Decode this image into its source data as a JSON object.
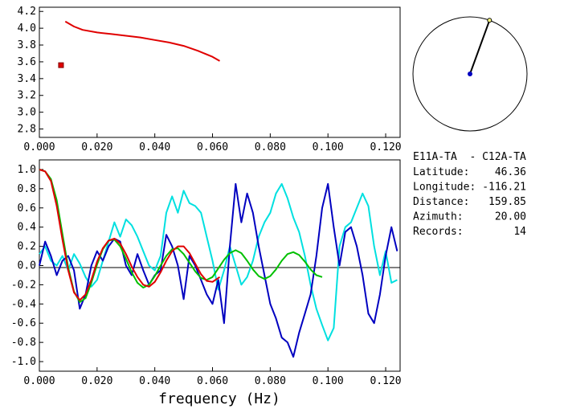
{
  "chart_data": [
    {
      "type": "line",
      "title": "",
      "xlabel": "",
      "ylabel": "",
      "xlim": [
        0,
        0.125
      ],
      "ylim": [
        2.7,
        4.25
      ],
      "xticks": [
        "0.000",
        "0.020",
        "0.040",
        "0.060",
        "0.080",
        "0.100",
        "0.120"
      ],
      "xtick_values": [
        0,
        0.02,
        0.04,
        0.06,
        0.08,
        0.1,
        0.12
      ],
      "yticks": [
        "4.2",
        "4.0",
        "3.8",
        "3.6",
        "3.4",
        "3.2",
        "3.0",
        "2.8"
      ],
      "ytick_values": [
        4.2,
        4.0,
        3.8,
        3.6,
        3.4,
        3.2,
        3.0,
        2.8
      ],
      "grid": false,
      "series": [
        {
          "color": "#e00000",
          "x": [
            0.009,
            0.012,
            0.015,
            0.02,
            0.025,
            0.03,
            0.035,
            0.04,
            0.045,
            0.05,
            0.055,
            0.06,
            0.0625
          ],
          "y": [
            4.08,
            4.02,
            3.98,
            3.95,
            3.93,
            3.91,
            3.89,
            3.86,
            3.83,
            3.79,
            3.73,
            3.66,
            3.61
          ]
        }
      ],
      "markers": [
        {
          "x": 0.0075,
          "y": 3.56,
          "shape": "square",
          "color": "#e00000"
        }
      ]
    },
    {
      "type": "line",
      "title": "",
      "xlabel": "frequency (Hz)",
      "ylabel": "",
      "xlim": [
        0,
        0.125
      ],
      "ylim": [
        -1.1,
        1.1
      ],
      "xticks": [
        "0.000",
        "0.020",
        "0.040",
        "0.060",
        "0.080",
        "0.100",
        "0.120"
      ],
      "xtick_values": [
        0,
        0.02,
        0.04,
        0.06,
        0.08,
        0.1,
        0.12
      ],
      "yticks": [
        "1.0",
        "0.8",
        "0.6",
        "0.4",
        "0.2",
        "0.0",
        "-0.2",
        "-0.4",
        "-0.6",
        "-0.8",
        "-1.0"
      ],
      "ytick_values": [
        1.0,
        0.8,
        0.6,
        0.4,
        0.2,
        0.0,
        -0.2,
        -0.4,
        -0.6,
        -0.8,
        -1.0
      ],
      "grid": false,
      "zero_line": true,
      "series": [
        {
          "color": "#00e0e0",
          "x": [
            0,
            0.002,
            0.004,
            0.006,
            0.008,
            0.01,
            0.012,
            0.014,
            0.016,
            0.018,
            0.02,
            0.022,
            0.024,
            0.026,
            0.028,
            0.03,
            0.032,
            0.034,
            0.036,
            0.038,
            0.04,
            0.042,
            0.044,
            0.046,
            0.048,
            0.05,
            0.052,
            0.054,
            0.056,
            0.058,
            0.06,
            0.062,
            0.064,
            0.066,
            0.068,
            0.07,
            0.072,
            0.074,
            0.076,
            0.078,
            0.08,
            0.082,
            0.084,
            0.086,
            0.088,
            0.09,
            0.092,
            0.094,
            0.096,
            0.098,
            0.1,
            0.102,
            0.104,
            0.106,
            0.108,
            0.11,
            0.112,
            0.114,
            0.116,
            0.118,
            0.12,
            0.122,
            0.124
          ],
          "y": [
            0.12,
            0.2,
            0.05,
            0.0,
            0.1,
            -0.05,
            0.12,
            0.02,
            -0.12,
            -0.22,
            -0.15,
            0.05,
            0.25,
            0.45,
            0.3,
            0.48,
            0.42,
            0.3,
            0.15,
            0.0,
            -0.05,
            0.1,
            0.55,
            0.72,
            0.55,
            0.78,
            0.65,
            0.62,
            0.55,
            0.3,
            0.05,
            -0.25,
            -0.05,
            0.2,
            0.0,
            -0.2,
            -0.12,
            0.05,
            0.3,
            0.45,
            0.55,
            0.75,
            0.85,
            0.7,
            0.5,
            0.35,
            0.1,
            -0.2,
            -0.45,
            -0.62,
            -0.78,
            -0.65,
            0.2,
            0.4,
            0.45,
            0.6,
            0.75,
            0.62,
            0.2,
            -0.1,
            0.15,
            -0.18,
            -0.15
          ]
        },
        {
          "color": "#0000c0",
          "x": [
            0,
            0.002,
            0.004,
            0.006,
            0.008,
            0.01,
            0.012,
            0.014,
            0.016,
            0.018,
            0.02,
            0.022,
            0.024,
            0.026,
            0.028,
            0.03,
            0.032,
            0.034,
            0.036,
            0.038,
            0.04,
            0.042,
            0.044,
            0.046,
            0.048,
            0.05,
            0.052,
            0.054,
            0.056,
            0.058,
            0.06,
            0.062,
            0.064,
            0.066,
            0.068,
            0.07,
            0.072,
            0.074,
            0.076,
            0.078,
            0.08,
            0.082,
            0.084,
            0.086,
            0.088,
            0.09,
            0.092,
            0.094,
            0.096,
            0.098,
            0.1,
            0.102,
            0.104,
            0.106,
            0.108,
            0.11,
            0.112,
            0.114,
            0.116,
            0.118,
            0.12,
            0.122,
            0.124
          ],
          "y": [
            0.0,
            0.25,
            0.1,
            -0.1,
            0.05,
            0.1,
            -0.05,
            -0.45,
            -0.3,
            0.0,
            0.15,
            0.05,
            0.2,
            0.28,
            0.25,
            0.0,
            -0.1,
            0.12,
            -0.05,
            -0.2,
            -0.1,
            -0.05,
            0.32,
            0.2,
            0.0,
            -0.35,
            0.1,
            0.0,
            -0.15,
            -0.3,
            -0.4,
            -0.15,
            -0.6,
            0.2,
            0.85,
            0.45,
            0.75,
            0.55,
            0.2,
            -0.1,
            -0.4,
            -0.55,
            -0.75,
            -0.8,
            -0.95,
            -0.7,
            -0.5,
            -0.3,
            0.1,
            0.6,
            0.85,
            0.4,
            0.0,
            0.35,
            0.4,
            0.2,
            -0.1,
            -0.5,
            -0.6,
            -0.3,
            0.1,
            0.4,
            0.15
          ]
        },
        {
          "color": "#00c000",
          "x": [
            0.0,
            0.002,
            0.004,
            0.006,
            0.008,
            0.01,
            0.012,
            0.014,
            0.016,
            0.018,
            0.02,
            0.022,
            0.024,
            0.026,
            0.028,
            0.03,
            0.032,
            0.034,
            0.036,
            0.038,
            0.04,
            0.042,
            0.044,
            0.046,
            0.048,
            0.05,
            0.052,
            0.054,
            0.056,
            0.058,
            0.06,
            0.062,
            0.064,
            0.066,
            0.068,
            0.07,
            0.072,
            0.074,
            0.076,
            0.078,
            0.08,
            0.082,
            0.084,
            0.086,
            0.088,
            0.09,
            0.092,
            0.094,
            0.096,
            0.098
          ],
          "y": [
            1.0,
            0.98,
            0.9,
            0.68,
            0.33,
            -0.02,
            -0.27,
            -0.38,
            -0.34,
            -0.18,
            0.01,
            0.17,
            0.26,
            0.27,
            0.2,
            0.07,
            -0.07,
            -0.18,
            -0.23,
            -0.2,
            -0.11,
            0.0,
            0.1,
            0.17,
            0.18,
            0.12,
            0.03,
            -0.06,
            -0.13,
            -0.15,
            -0.12,
            -0.03,
            0.06,
            0.13,
            0.16,
            0.13,
            0.05,
            -0.04,
            -0.11,
            -0.14,
            -0.11,
            -0.04,
            0.05,
            0.12,
            0.14,
            0.11,
            0.04,
            -0.04,
            -0.1,
            -0.12
          ]
        },
        {
          "color": "#e00000",
          "x": [
            0.0,
            0.002,
            0.004,
            0.006,
            0.008,
            0.01,
            0.012,
            0.014,
            0.016,
            0.018,
            0.02,
            0.022,
            0.024,
            0.026,
            0.028,
            0.03,
            0.032,
            0.034,
            0.036,
            0.038,
            0.04,
            0.042,
            0.044,
            0.046,
            0.048,
            0.05,
            0.052,
            0.054,
            0.056,
            0.058,
            0.06,
            0.0625
          ],
          "y": [
            1.0,
            0.98,
            0.88,
            0.62,
            0.27,
            -0.05,
            -0.28,
            -0.36,
            -0.3,
            -0.15,
            0.04,
            0.18,
            0.26,
            0.28,
            0.23,
            0.12,
            -0.01,
            -0.12,
            -0.2,
            -0.22,
            -0.17,
            -0.07,
            0.05,
            0.15,
            0.2,
            0.2,
            0.13,
            0.02,
            -0.09,
            -0.16,
            -0.17,
            -0.12
          ]
        }
      ]
    }
  ],
  "polar": {
    "azimuth": 20.0
  },
  "info": {
    "station_pair": "E11A-TA  - C12A-TA",
    "rows": [
      {
        "label": "Latitude:",
        "value": "46.36"
      },
      {
        "label": "Longitude:",
        "value": "-116.21"
      },
      {
        "label": "Distance:",
        "value": "159.85"
      },
      {
        "label": "Azimuth:",
        "value": "20.00"
      },
      {
        "label": "Records:",
        "value": "14"
      }
    ]
  }
}
